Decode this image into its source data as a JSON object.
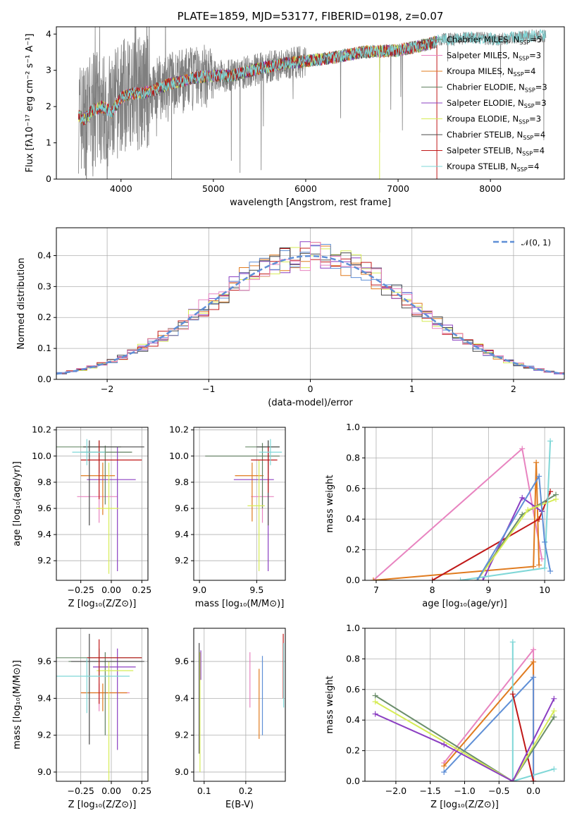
{
  "colors": [
    "#6b8e6b",
    "#e884c0",
    "#e07b1f",
    "#5f7f5f",
    "#8b3fc2",
    "#d6ec55",
    "#4a4a4a",
    "#c01818",
    "#7fd7d7"
  ],
  "palette_hist": [
    "#e07b1f",
    "#8b3fc2",
    "#d6ec55",
    "#c01818",
    "#5f8fd6",
    "#4a4a4a",
    "#e884c0"
  ],
  "chart_data": [
    {
      "id": "spectrum",
      "type": "line",
      "title": "PLATE=1859, MJD=53177, FIBERID=0198, z=0.07",
      "xlabel": "wavelength [Angstrom, rest frame]",
      "ylabel": "Flux [fλ10⁻¹⁷ erg cm⁻² s⁻¹ A⁻¹]",
      "xlim": [
        3300,
        8800
      ],
      "ylim": [
        0,
        4.2
      ],
      "xticks": [
        4000,
        5000,
        6000,
        7000,
        8000
      ],
      "yticks": [
        0,
        1,
        2,
        3,
        4
      ],
      "legend": [
        "Chabrier MILES, N_SSP=5",
        "Salpeter MILES, N_SSP=3",
        "Kroupa MILES, N_SSP=4",
        "Chabrier ELODIE, N_SSP=3",
        "Salpeter ELODIE, N_SSP=3",
        "Kroupa ELODIE, N_SSP=3",
        "Chabrier STELIB, N_SSP=4",
        "Salpeter STELIB, N_SSP=4",
        "Kroupa STELIB, N_SSP=4"
      ],
      "model_continuum": [
        [
          3540,
          1.75
        ],
        [
          3600,
          1.65
        ],
        [
          3700,
          1.9
        ],
        [
          3800,
          2.0
        ],
        [
          3900,
          1.85
        ],
        [
          4000,
          2.25
        ],
        [
          4100,
          2.35
        ],
        [
          4300,
          2.4
        ],
        [
          4500,
          2.6
        ],
        [
          4800,
          2.8
        ],
        [
          5000,
          2.85
        ],
        [
          5200,
          2.85
        ],
        [
          5500,
          3.05
        ],
        [
          5800,
          3.2
        ],
        [
          6000,
          3.25
        ],
        [
          6300,
          3.35
        ],
        [
          6600,
          3.5
        ],
        [
          7000,
          3.55
        ],
        [
          7300,
          3.7
        ],
        [
          7500,
          3.85
        ],
        [
          7800,
          3.9
        ],
        [
          8100,
          3.85
        ],
        [
          8400,
          3.95
        ],
        [
          8600,
          3.95
        ]
      ],
      "data_range_x": [
        3540,
        8600
      ],
      "ssp_line_x": [
        6800,
        7420
      ]
    },
    {
      "id": "residuals",
      "type": "line",
      "xlabel": "(data-model)/error",
      "ylabel": "Normed distribution",
      "xlim": [
        -2.5,
        2.5
      ],
      "ylim": [
        0,
        0.49
      ],
      "xticks": [
        -2,
        -1,
        0,
        1,
        2
      ],
      "xticklabels": [
        "−2",
        "−1",
        "0",
        "1",
        "2"
      ],
      "yticks": [
        0,
        0.1,
        0.2,
        0.3,
        0.4
      ],
      "yticklabels": [
        "0.0",
        "0.1",
        "0.2",
        "0.3",
        "0.4"
      ],
      "legend": [
        "𝒩(0, 1)"
      ],
      "bin_width": 0.1
    },
    {
      "id": "age-vs-z",
      "type": "scatter",
      "xlabel": "Z [log₁₀(Z/Z⊙)]",
      "ylabel": "age  [log₁₀(age/yr)]",
      "xlim": [
        -0.45,
        0.3
      ],
      "ylim": [
        9.05,
        10.22
      ],
      "xticks": [
        -0.25,
        0.0,
        0.25
      ],
      "xticklabels": [
        "−0.25",
        "0.00",
        "0.25"
      ],
      "yticks": [
        9.2,
        9.4,
        9.6,
        9.8,
        10.0,
        10.2
      ],
      "yticklabels": [
        "9.2",
        "9.4",
        "9.6",
        "9.8",
        "10.0",
        "10.2"
      ],
      "points": [
        {
          "x": -0.1,
          "y": 10.07,
          "xerr": [
            0.35,
            0.18
          ],
          "yerr": [
            0.2,
            0.05
          ],
          "c": 0
        },
        {
          "x": -0.1,
          "y": 9.69,
          "xerr": [
            0.18,
            0.15
          ],
          "yerr": [
            0.2,
            0.05
          ],
          "c": 1
        },
        {
          "x": -0.07,
          "y": 9.85,
          "xerr": [
            0.18,
            0.1
          ],
          "yerr": [
            0.3,
            0.1
          ],
          "c": 2
        },
        {
          "x": -0.05,
          "y": 10.03,
          "xerr": [
            0.2,
            0.22
          ],
          "yerr": [
            0.4,
            0.05
          ],
          "c": 3
        },
        {
          "x": 0.05,
          "y": 9.82,
          "xerr": [
            0.25,
            0.15
          ],
          "yerr": [
            0.7,
            0.25
          ],
          "c": 4
        },
        {
          "x": -0.02,
          "y": 9.6,
          "xerr": [
            0.1,
            0.08
          ],
          "yerr": [
            0.5,
            0.35
          ],
          "c": 5
        },
        {
          "x": -0.18,
          "y": 10.07,
          "xerr": [
            0.05,
            0.45
          ],
          "yerr": [
            0.6,
            0.05
          ],
          "c": 6
        },
        {
          "x": -0.1,
          "y": 9.97,
          "xerr": [
            0.15,
            0.35
          ],
          "yerr": [
            0.3,
            0.15
          ],
          "c": 7
        },
        {
          "x": -0.2,
          "y": 10.03,
          "xerr": [
            0.12,
            0.15
          ],
          "yerr": [
            0.1,
            0.1
          ],
          "c": 8
        }
      ]
    },
    {
      "id": "age-vs-mass",
      "type": "scatter",
      "xlabel": "mass [log₁₀(M/M⊙)]",
      "ylabel": "",
      "xlim": [
        8.95,
        9.75
      ],
      "ylim": [
        9.05,
        10.22
      ],
      "xticks": [
        9.0,
        9.5
      ],
      "xticklabels": [
        "9.0",
        "9.5"
      ],
      "yticks": [
        9.2,
        9.4,
        9.6,
        9.8,
        10.0,
        10.2
      ],
      "yticklabels": [
        "9.2",
        "9.4",
        "9.6",
        "9.8",
        "10.0",
        "10.2"
      ],
      "points": [
        {
          "x": 9.6,
          "y": 10.07,
          "xerr": [
            0.2,
            0.1
          ],
          "yerr": [
            0.2,
            0.05
          ],
          "c": 0
        },
        {
          "x": 9.55,
          "y": 9.69,
          "xerr": [
            0.1,
            0.1
          ],
          "yerr": [
            0.2,
            0.05
          ],
          "c": 1
        },
        {
          "x": 9.46,
          "y": 9.85,
          "xerr": [
            0.15,
            0.1
          ],
          "yerr": [
            0.35,
            0.1
          ],
          "c": 2
        },
        {
          "x": 9.55,
          "y": 10.0,
          "xerr": [
            0.5,
            0.15
          ],
          "yerr": [
            0.4,
            0.1
          ],
          "c": 3
        },
        {
          "x": 9.6,
          "y": 9.82,
          "xerr": [
            0.3,
            0.05
          ],
          "yerr": [
            0.7,
            0.25
          ],
          "c": 4
        },
        {
          "x": 9.52,
          "y": 9.62,
          "xerr": [
            0.1,
            0.05
          ],
          "yerr": [
            0.5,
            0.35
          ],
          "c": 5
        },
        {
          "x": 9.6,
          "y": 10.07,
          "xerr": [
            0.1,
            0.1
          ],
          "yerr": [
            0.6,
            0.05
          ],
          "c": 6
        },
        {
          "x": 9.6,
          "y": 9.97,
          "xerr": [
            0.15,
            0.08
          ],
          "yerr": [
            0.25,
            0.1
          ],
          "c": 7
        },
        {
          "x": 9.62,
          "y": 10.03,
          "xerr": [
            0.1,
            0.1
          ],
          "yerr": [
            0.1,
            0.1
          ],
          "c": 8
        }
      ]
    },
    {
      "id": "mass-weight-vs-age",
      "type": "line",
      "xlabel": "age  [log₁₀(age/yr)]",
      "ylabel": "mass weight",
      "xlim": [
        6.8,
        10.35
      ],
      "ylim": [
        0,
        1.0
      ],
      "xticks": [
        7,
        8,
        9,
        10
      ],
      "yticks": [
        0,
        0.2,
        0.4,
        0.6,
        0.8,
        1.0
      ],
      "yticklabels": [
        "0.0",
        "0.2",
        "0.4",
        "0.6",
        "0.8",
        "1.0"
      ],
      "series": [
        {
          "c": 1,
          "x": [
            6.95,
            9.6,
            9.95
          ],
          "y": [
            0.0,
            0.86,
            0.14
          ]
        },
        {
          "c": 2,
          "x": [
            6.95,
            9.8,
            9.85,
            9.9
          ],
          "y": [
            0.0,
            0.09,
            0.77,
            0.1
          ]
        },
        {
          "c": 7,
          "x": [
            8.0,
            9.9,
            10.1
          ],
          "y": [
            0.0,
            0.4,
            0.58
          ]
        },
        {
          "c": 4,
          "x": [
            8.9,
            9.6,
            9.95
          ],
          "y": [
            0.0,
            0.54,
            0.45
          ]
        },
        {
          "c": 0,
          "x": [
            8.8,
            9.6,
            10.2
          ],
          "y": [
            0.0,
            0.43,
            0.56
          ]
        },
        {
          "c": 5,
          "x": [
            8.8,
            9.7,
            10.2
          ],
          "y": [
            0.0,
            0.46,
            0.53
          ]
        },
        {
          "c": 8,
          "x": [
            8.5,
            10.0,
            10.1
          ],
          "y": [
            0.0,
            0.08,
            0.91
          ]
        },
        {
          "c": 9,
          "x": [
            8.8,
            9.9,
            10.0,
            10.1
          ],
          "y": [
            0.0,
            0.68,
            0.25,
            0.06
          ]
        }
      ]
    },
    {
      "id": "mass-vs-z",
      "type": "scatter",
      "xlabel": "Z [log₁₀(Z/Z⊙)]",
      "ylabel": "mass [log₁₀(M/M⊙)]",
      "xlim": [
        -0.45,
        0.3
      ],
      "ylim": [
        8.95,
        9.78
      ],
      "xticks": [
        -0.25,
        0.0,
        0.25
      ],
      "xticklabels": [
        "−0.25",
        "0.00",
        "0.25"
      ],
      "yticks": [
        9.0,
        9.2,
        9.4,
        9.6
      ],
      "yticklabels": [
        "9.0",
        "9.2",
        "9.4",
        "9.6"
      ],
      "points": [
        {
          "x": -0.1,
          "y": 9.62,
          "xerr": [
            0.35,
            0.35
          ],
          "yerr": [
            0.1,
            0.05
          ],
          "c": 0
        },
        {
          "x": -0.1,
          "y": 9.43,
          "xerr": [
            0.15,
            0.25
          ],
          "yerr": [
            0.1,
            0.05
          ],
          "c": 1
        },
        {
          "x": -0.07,
          "y": 9.43,
          "xerr": [
            0.18,
            0.2
          ],
          "yerr": [
            0.1,
            0.05
          ],
          "c": 2
        },
        {
          "x": -0.05,
          "y": 9.6,
          "xerr": [
            0.3,
            0.3
          ],
          "yerr": [
            0.4,
            0.05
          ],
          "c": 3
        },
        {
          "x": 0.05,
          "y": 9.57,
          "xerr": [
            0.2,
            0.15
          ],
          "yerr": [
            0.45,
            0.1
          ],
          "c": 4
        },
        {
          "x": -0.02,
          "y": 9.55,
          "xerr": [
            0.1,
            0.2
          ],
          "yerr": [
            0.6,
            0.05
          ],
          "c": 5
        },
        {
          "x": -0.18,
          "y": 9.6,
          "xerr": [
            0.15,
            0.45
          ],
          "yerr": [
            0.45,
            0.15
          ],
          "c": 6
        },
        {
          "x": -0.1,
          "y": 9.62,
          "xerr": [
            0.1,
            0.35
          ],
          "yerr": [
            0.25,
            0.1
          ],
          "c": 7
        },
        {
          "x": -0.2,
          "y": 9.52,
          "xerr": [
            0.25,
            0.35
          ],
          "yerr": [
            0.2,
            0.1
          ],
          "c": 8
        }
      ]
    },
    {
      "id": "mass-vs-ebv",
      "type": "scatter",
      "xlabel": "E(B-V)",
      "ylabel": "",
      "xlim": [
        0.075,
        0.295
      ],
      "ylim": [
        8.95,
        9.78
      ],
      "xticks": [
        0.1,
        0.2
      ],
      "xticklabels": [
        "0.1",
        "0.2"
      ],
      "yticks": [
        9.0,
        9.2,
        9.4,
        9.6
      ],
      "yticklabels": [
        "9.0",
        "9.2",
        "9.4",
        "9.6"
      ],
      "points": [
        {
          "x": 0.088,
          "y": 9.45,
          "xerr": [
            0,
            0
          ],
          "yerr": [
            0.35,
            0.25
          ],
          "c": 6
        },
        {
          "x": 0.09,
          "y": 9.5,
          "xerr": [
            0,
            0
          ],
          "yerr": [
            0.5,
            0.15
          ],
          "c": 5
        },
        {
          "x": 0.092,
          "y": 9.6,
          "xerr": [
            0,
            0
          ],
          "yerr": [
            0.1,
            0.06
          ],
          "c": 4
        },
        {
          "x": 0.21,
          "y": 9.5,
          "xerr": [
            0,
            0
          ],
          "yerr": [
            0.15,
            0.15
          ],
          "c": 1
        },
        {
          "x": 0.232,
          "y": 9.36,
          "xerr": [
            0,
            0
          ],
          "yerr": [
            0.18,
            0.2
          ],
          "c": 2
        },
        {
          "x": 0.24,
          "y": 9.4,
          "xerr": [
            0,
            0
          ],
          "yerr": [
            0.2,
            0.23
          ],
          "c": 9
        },
        {
          "x": 0.29,
          "y": 9.6,
          "xerr": [
            0,
            0
          ],
          "yerr": [
            0.2,
            0.15
          ],
          "c": 7
        },
        {
          "x": 0.291,
          "y": 9.5,
          "xerr": [
            0,
            0
          ],
          "yerr": [
            0.15,
            0.2
          ],
          "c": 8
        }
      ]
    },
    {
      "id": "mass-weight-vs-z",
      "type": "line",
      "xlabel": "Z [log₁₀(Z/Z⊙)]",
      "ylabel": "mass weight",
      "xlim": [
        -2.45,
        0.45
      ],
      "ylim": [
        0,
        1.0
      ],
      "xticks": [
        -2.0,
        -1.5,
        -1.0,
        -0.5,
        0.0
      ],
      "xticklabels": [
        "−2.0",
        "−1.5",
        "−1.0",
        "−0.5",
        "0.0"
      ],
      "yticks": [
        0,
        0.2,
        0.4,
        0.6,
        0.8,
        1.0
      ],
      "yticklabels": [
        "0.0",
        "0.2",
        "0.4",
        "0.6",
        "0.8",
        "1.0"
      ],
      "series": [
        {
          "c": 1,
          "x": [
            -1.3,
            0.0,
            0.0
          ],
          "y": [
            0.12,
            0.86,
            0.0
          ]
        },
        {
          "c": 2,
          "x": [
            -1.3,
            0.0,
            0.0
          ],
          "y": [
            0.1,
            0.78,
            0.0
          ]
        },
        {
          "c": 9,
          "x": [
            -1.3,
            0.0,
            0.0
          ],
          "y": [
            0.06,
            0.68,
            0.0
          ]
        },
        {
          "c": 8,
          "x": [
            -0.3,
            -0.3,
            0.3
          ],
          "y": [
            0.91,
            0.0,
            0.08
          ]
        },
        {
          "c": 7,
          "x": [
            -0.3,
            0.0,
            0.0
          ],
          "y": [
            0.57,
            0.0,
            0.0
          ]
        },
        {
          "c": 0,
          "x": [
            -2.3,
            -0.3,
            0.3
          ],
          "y": [
            0.56,
            0.0,
            0.42
          ]
        },
        {
          "c": 5,
          "x": [
            -2.3,
            -0.3,
            0.3
          ],
          "y": [
            0.52,
            0.0,
            0.46
          ]
        },
        {
          "c": 4,
          "x": [
            -2.3,
            -1.3,
            -0.3,
            0.3
          ],
          "y": [
            0.44,
            0.24,
            0.0,
            0.54
          ]
        }
      ]
    }
  ]
}
